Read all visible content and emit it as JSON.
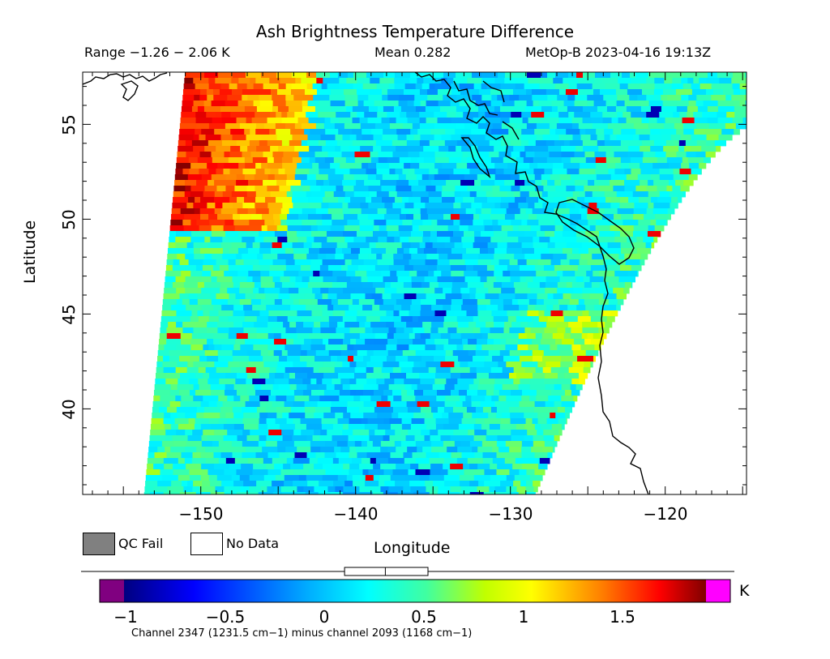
{
  "header": {
    "title": "Ash Brightness Temperature Difference",
    "range": "Range −1.26 − 2.06 K",
    "mean": "Mean 0.282",
    "satellite_time": "MetOp-B 2023-04-16 19:13Z"
  },
  "axes": {
    "ylabel": "Latitude",
    "xlabel": "Longitude",
    "lat_ticks": [
      "40",
      "45",
      "50",
      "55"
    ],
    "lon_ticks": [
      "−150",
      "−140",
      "−130",
      "−120"
    ],
    "lat_range": [
      35.5,
      57.8
    ],
    "lon_range": [
      -157.8,
      -115
    ]
  },
  "legend": {
    "qc_fail": "QC Fail",
    "no_data": "No Data",
    "qc_color": "#808080",
    "no_data_color": "#ffffff"
  },
  "colorbar": {
    "unit": "K",
    "tick_labels": [
      "−1",
      "−0.5",
      "0",
      "0.5",
      "1",
      "1.5"
    ],
    "ticks": [
      -1,
      -0.5,
      0,
      0.5,
      1,
      1.5
    ],
    "range": [
      -1.14,
      2.0
    ],
    "under_color": "#800080",
    "over_color": "#ff00ff",
    "footnote": "Channel 2347 (1231.5 cm−1) minus channel 2093 (1168 cm−1)"
  },
  "boxplot": {
    "min": -1.26,
    "q1": 0.05,
    "median": 0.27,
    "q3": 0.5,
    "max": 2.06
  },
  "colors": {
    "pacific_west_high": "#ff8c00",
    "typical_field": "#00ffb0",
    "land_no_data": "#ffffff"
  }
}
